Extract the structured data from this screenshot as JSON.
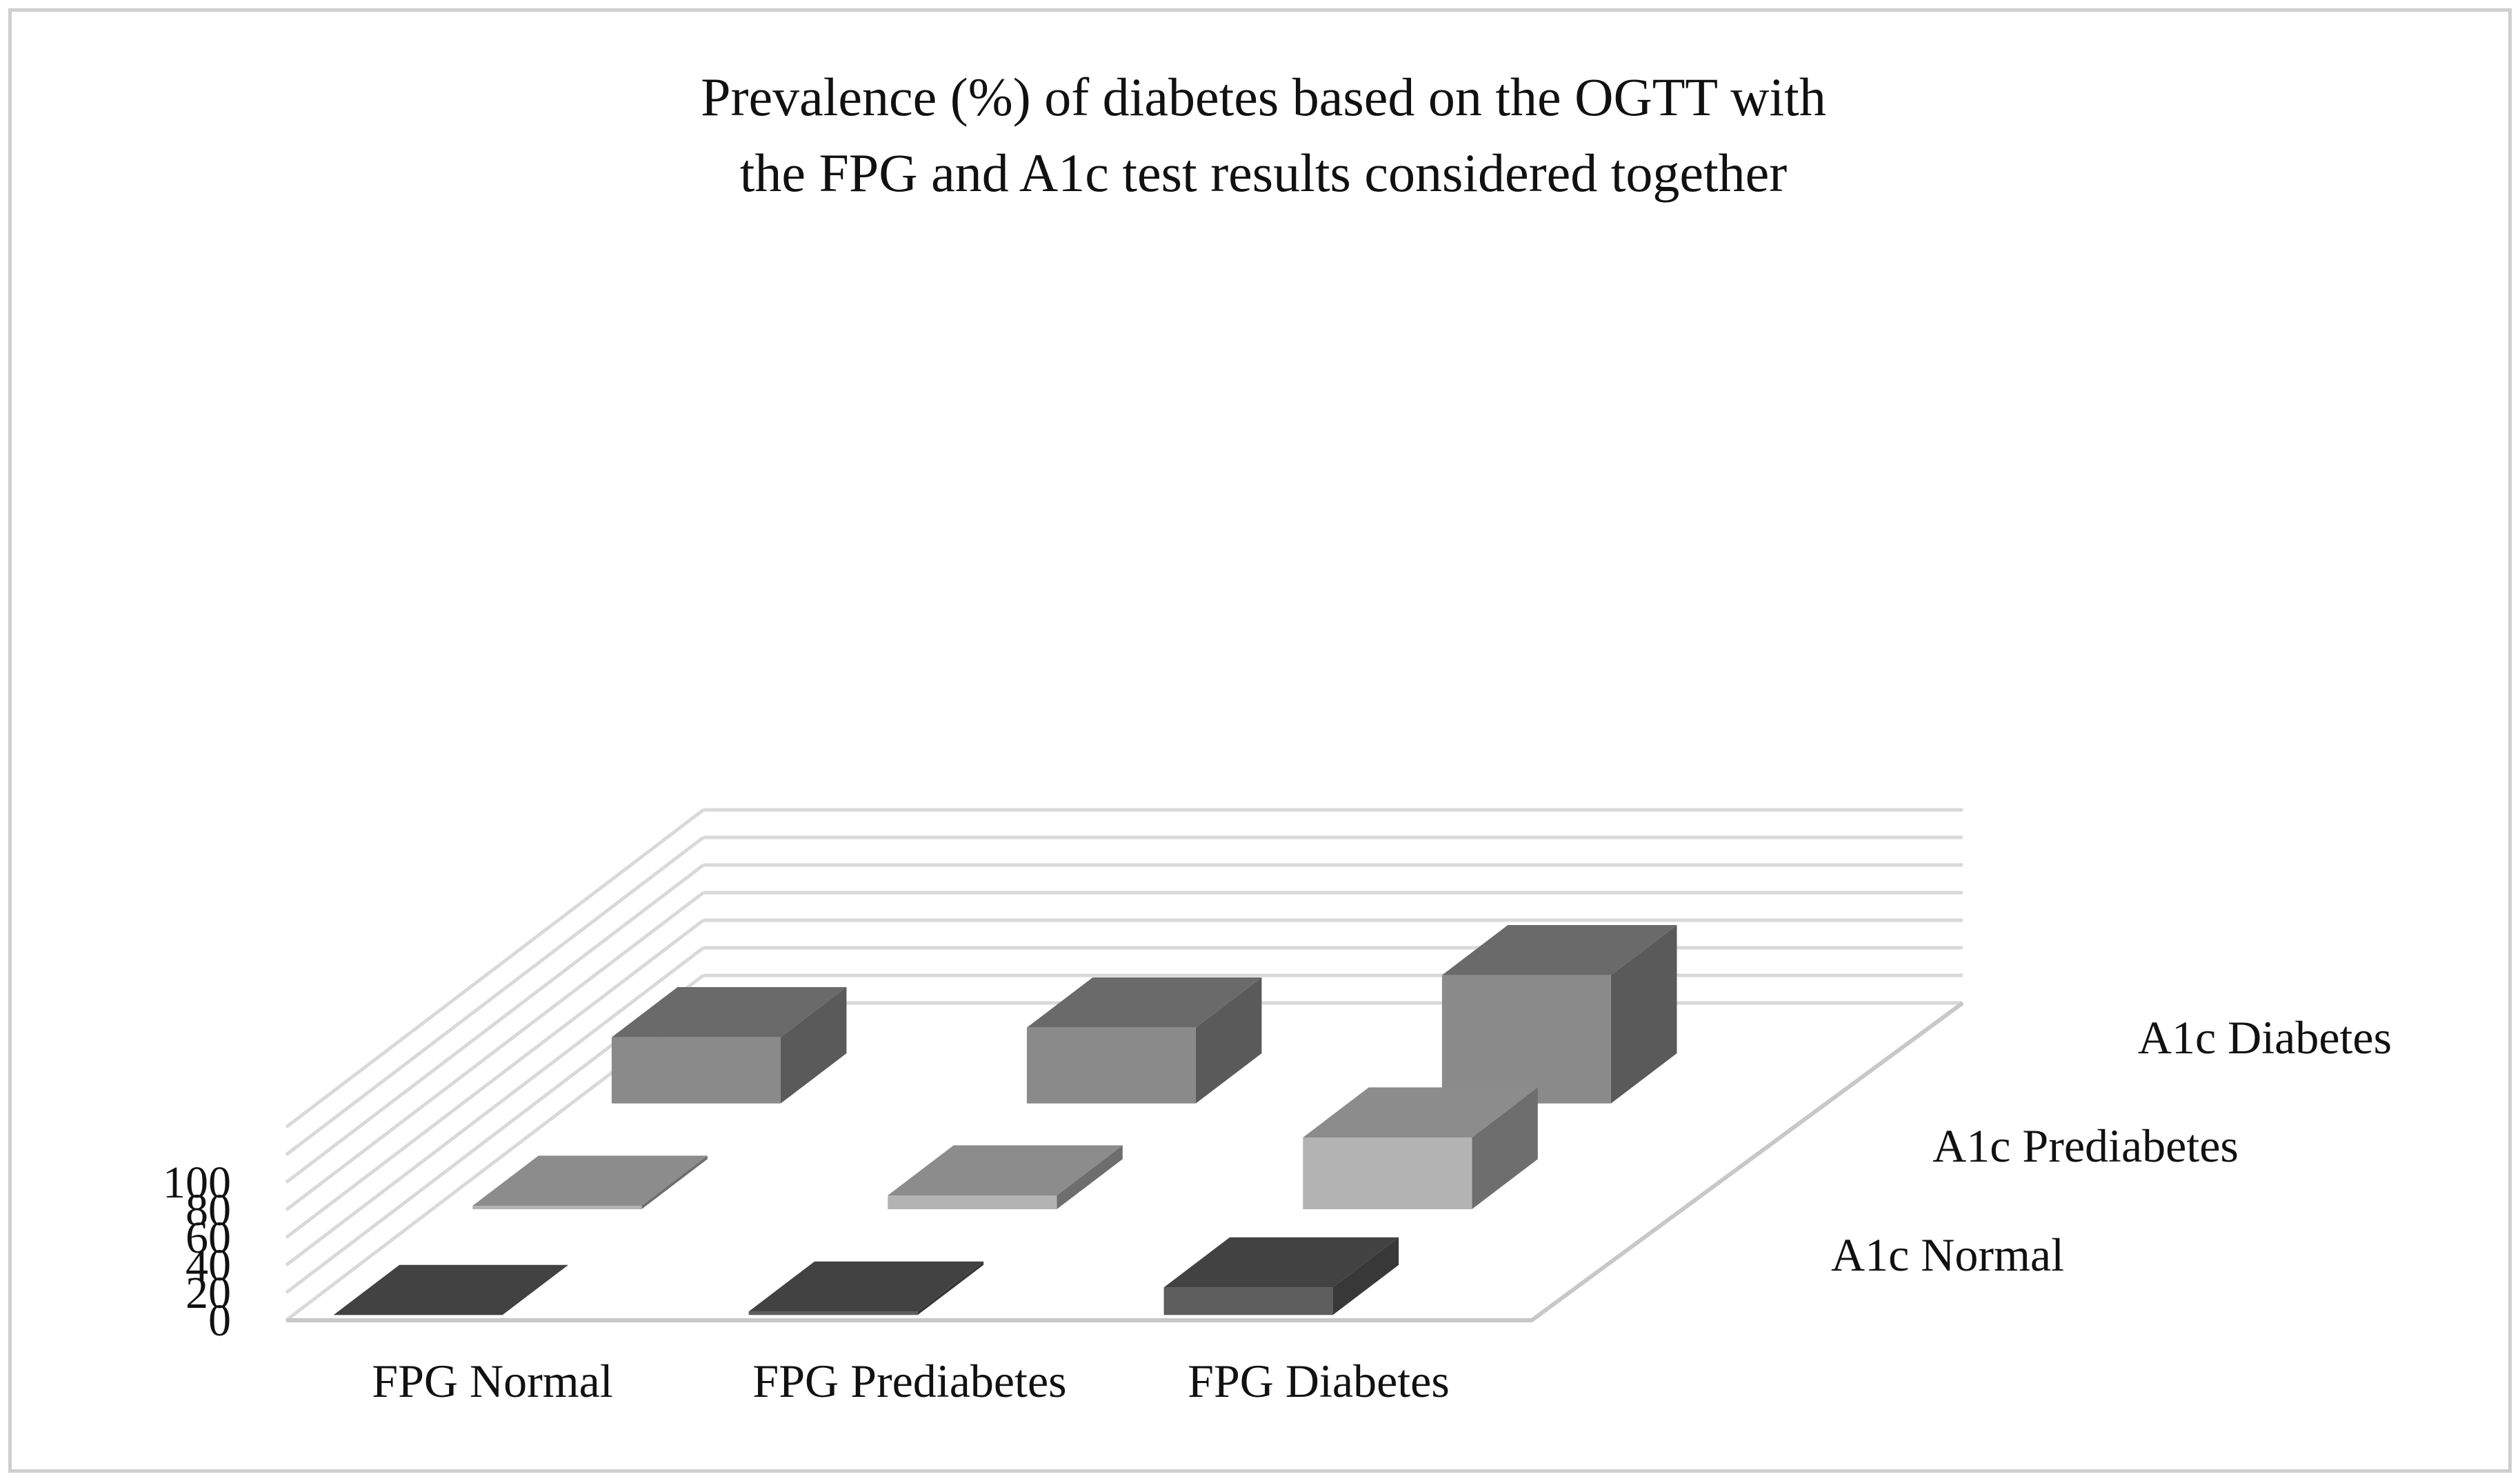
{
  "chart_data": {
    "type": "bar",
    "subtype": "3d-column",
    "title": [
      "Prevalence (%) of diabetes based on the OGTT with",
      "the FPG and A1c test results considered together"
    ],
    "xlabel": "",
    "ylabel": "",
    "ylim": [
      0,
      100
    ],
    "yticks": [
      "0",
      "20",
      "40",
      "60",
      "80",
      "100"
    ],
    "categories": [
      "FPG Normal",
      "FPG Prediabetes",
      "FPG Diabetes"
    ],
    "series": [
      {
        "name": "A1c Normal",
        "values": [
          0,
          2.5,
          20
        ],
        "color_front": "#5e5e5e",
        "color_side": "#383838",
        "color_top": "#424242"
      },
      {
        "name": "A1c Prediabetes",
        "values": [
          2.5,
          10,
          52
        ],
        "color_front": "#b3b3b3",
        "color_side": "#6e6e6e",
        "color_top": "#8c8c8c"
      },
      {
        "name": "A1c Diabetes",
        "values": [
          48,
          55,
          93
        ],
        "color_front": "#8a8a8a",
        "color_side": "#5a5a5a",
        "color_top": "#6a6a6a"
      }
    ],
    "grid": true,
    "legend": "series labels along depth axis (right)"
  }
}
